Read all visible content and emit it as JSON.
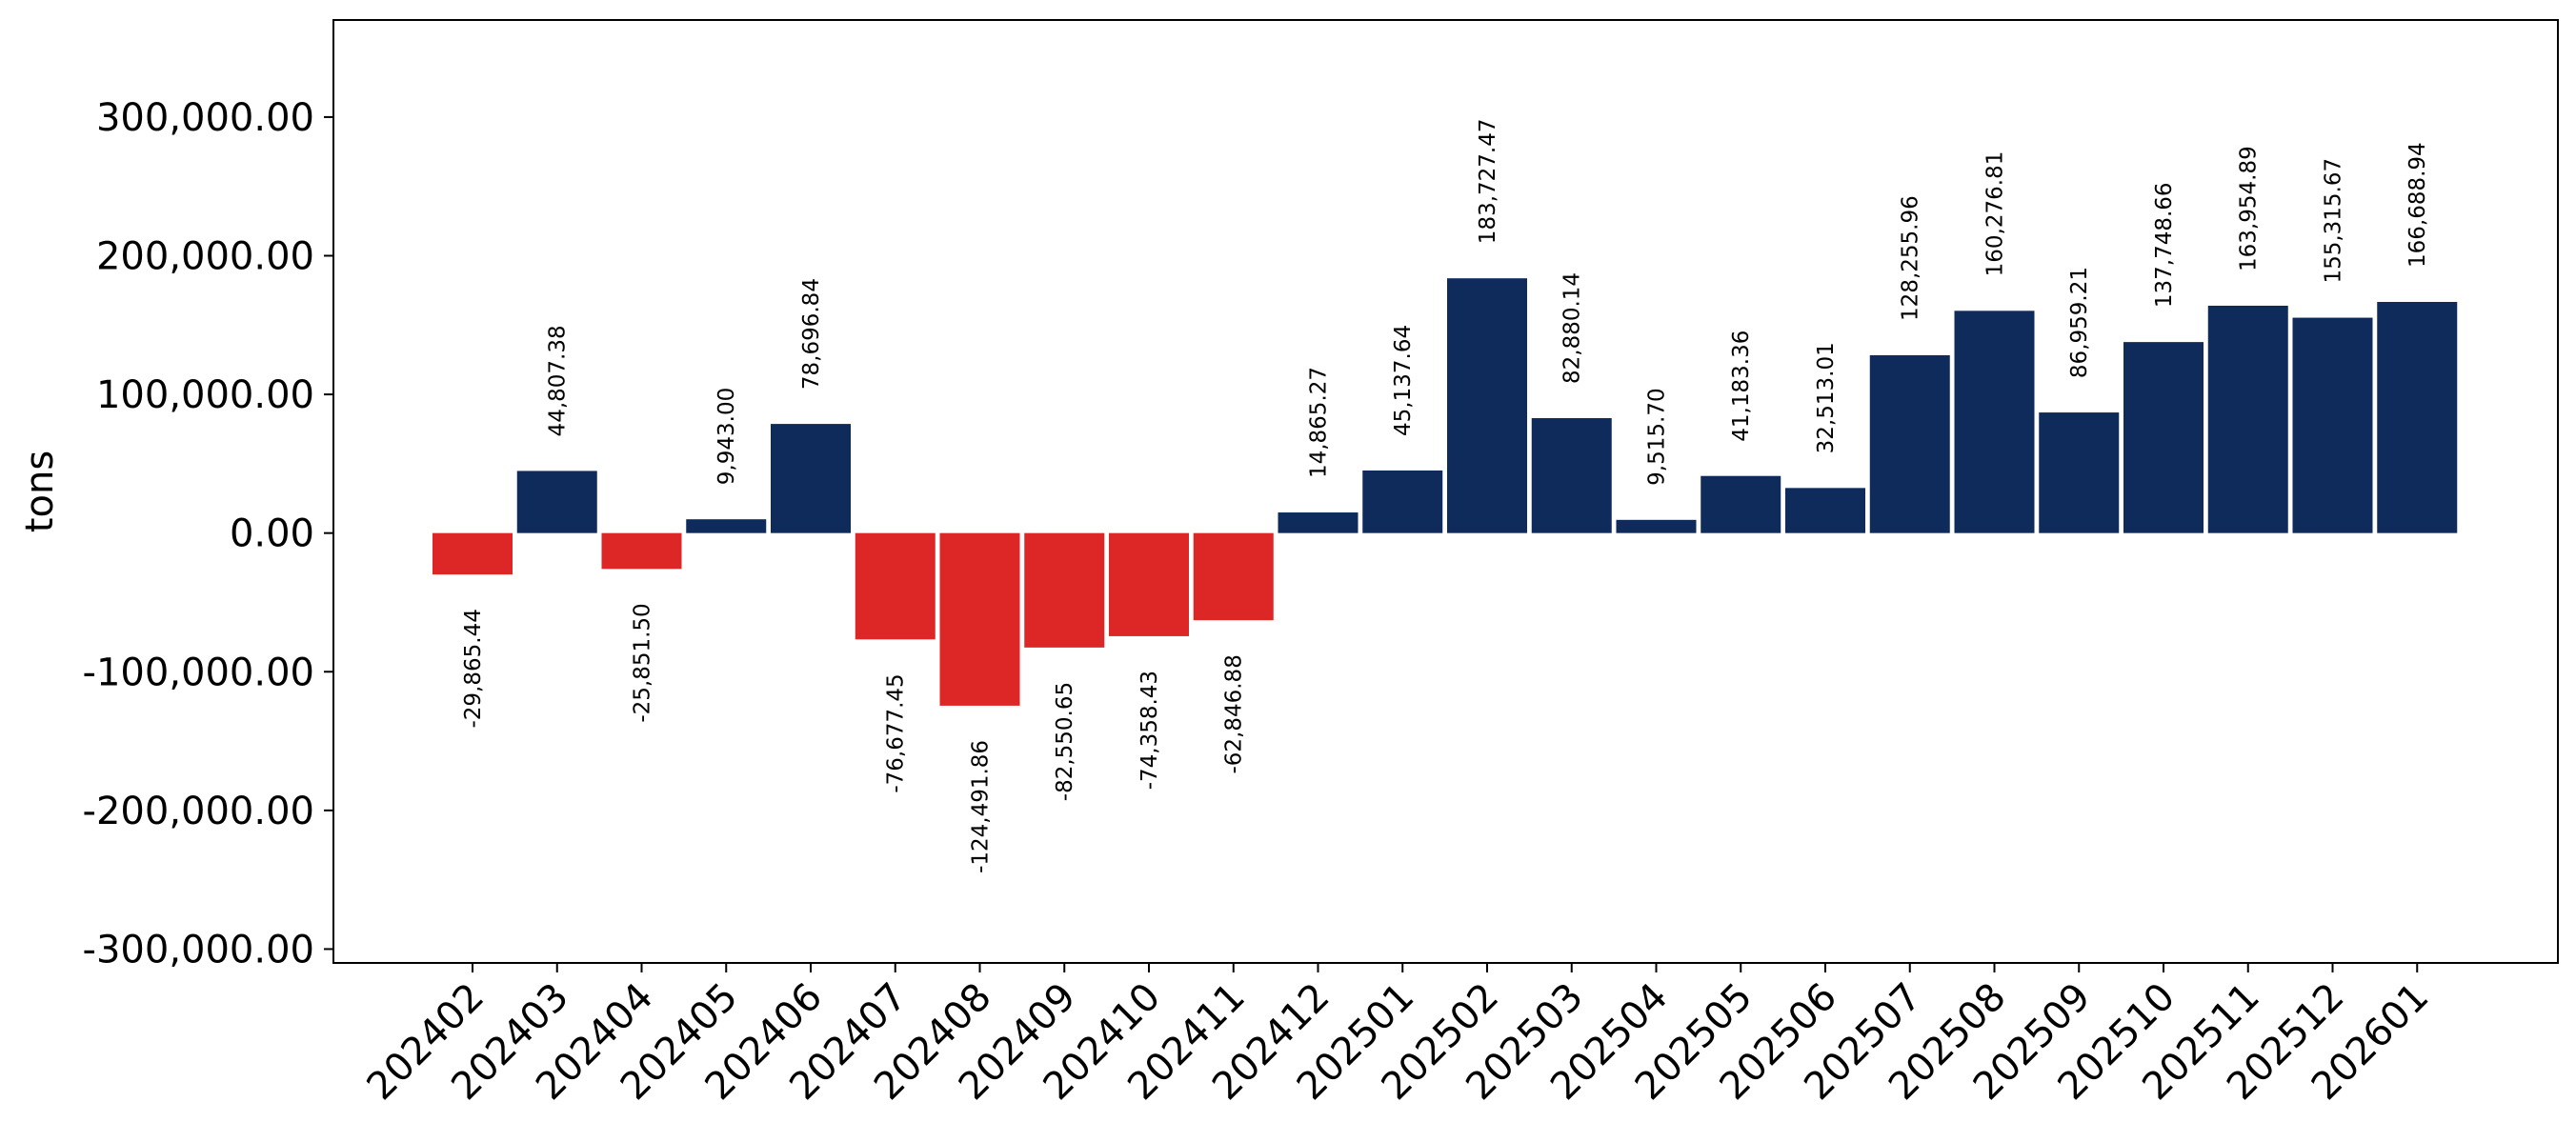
{
  "chart_data": {
    "type": "bar",
    "title": "",
    "xlabel": "",
    "ylabel": "tons",
    "ylim": [
      -310000,
      370000
    ],
    "yticks": [
      -300000,
      -200000,
      -100000,
      0,
      100000,
      200000,
      300000
    ],
    "ytick_labels": [
      "-300,000.00",
      "-200,000.00",
      "-100,000.00",
      "0.00",
      "100,000.00",
      "200,000.00",
      "300,000.00"
    ],
    "grid": false,
    "legend": "none",
    "colors": {
      "positive": "#0e2b5c",
      "negative": "#dd2727",
      "axis": "#000000"
    },
    "categories": [
      "202402",
      "202403",
      "202404",
      "202405",
      "202406",
      "202407",
      "202408",
      "202409",
      "202410",
      "202411",
      "202412",
      "202501",
      "202502",
      "202503",
      "202504",
      "202505",
      "202506",
      "202507",
      "202508",
      "202509",
      "202510",
      "202511",
      "202512",
      "202601"
    ],
    "values": [
      -29865.44,
      44807.38,
      -25851.5,
      9943.0,
      78696.84,
      -76677.45,
      -124491.86,
      -82550.65,
      -74358.43,
      -62846.88,
      14865.27,
      45137.64,
      183727.47,
      82880.14,
      9515.7,
      41183.36,
      32513.01,
      128255.96,
      160276.81,
      86959.21,
      137748.66,
      163954.89,
      155315.67,
      166688.94
    ],
    "value_labels": [
      "-29,865.44",
      "44,807.38",
      "-25,851.50",
      "9,943.00",
      "78,696.84",
      "-76,677.45",
      "-124,491.86",
      "-82,550.65",
      "-74,358.43",
      "-62,846.88",
      "14,865.27",
      "45,137.64",
      "183,727.47",
      "82,880.14",
      "9,515.70",
      "41,183.36",
      "32,513.01",
      "128,255.96",
      "160,276.81",
      "86,959.21",
      "137,748.66",
      "163,954.89",
      "155,315.67",
      "166,688.94"
    ]
  }
}
